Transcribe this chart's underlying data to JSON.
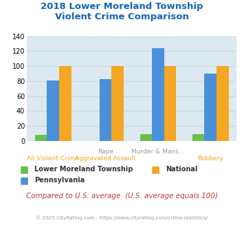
{
  "title": "2018 Lower Moreland Township\nViolent Crime Comparison",
  "title_color": "#1464b4",
  "series_order": [
    "Lower Moreland Township",
    "Pennsylvania",
    "National"
  ],
  "series": {
    "Lower Moreland Township": {
      "values": [
        8,
        0,
        9,
        9
      ],
      "color": "#6abf4b"
    },
    "National": {
      "values": [
        100,
        100,
        100,
        100
      ],
      "color": "#f5a623"
    },
    "Pennsylvania": {
      "values": [
        81,
        83,
        124,
        90
      ],
      "color": "#4a90d9"
    }
  },
  "cat_labels_line1": [
    "",
    "Rape",
    "Murder & Mans...",
    ""
  ],
  "cat_labels_line2": [
    "All Violent Crime",
    "Aggravated Assault",
    "",
    "Robbery"
  ],
  "cat_label1_color": "#999999",
  "cat_label2_color": "#f5a623",
  "ylim": [
    0,
    140
  ],
  "yticks": [
    0,
    20,
    40,
    60,
    80,
    100,
    120,
    140
  ],
  "plot_bg_color": "#dce9f0",
  "outer_bg_color": "#ffffff",
  "grid_color": "#c5d9e2",
  "footnote": "Compared to U.S. average. (U.S. average equals 100)",
  "footnote_color": "#c0392b",
  "copyright": "© 2025 CityRating.com - https://www.cityrating.com/crime-statistics/",
  "copyright_color": "#9999aa",
  "bar_width": 0.23
}
